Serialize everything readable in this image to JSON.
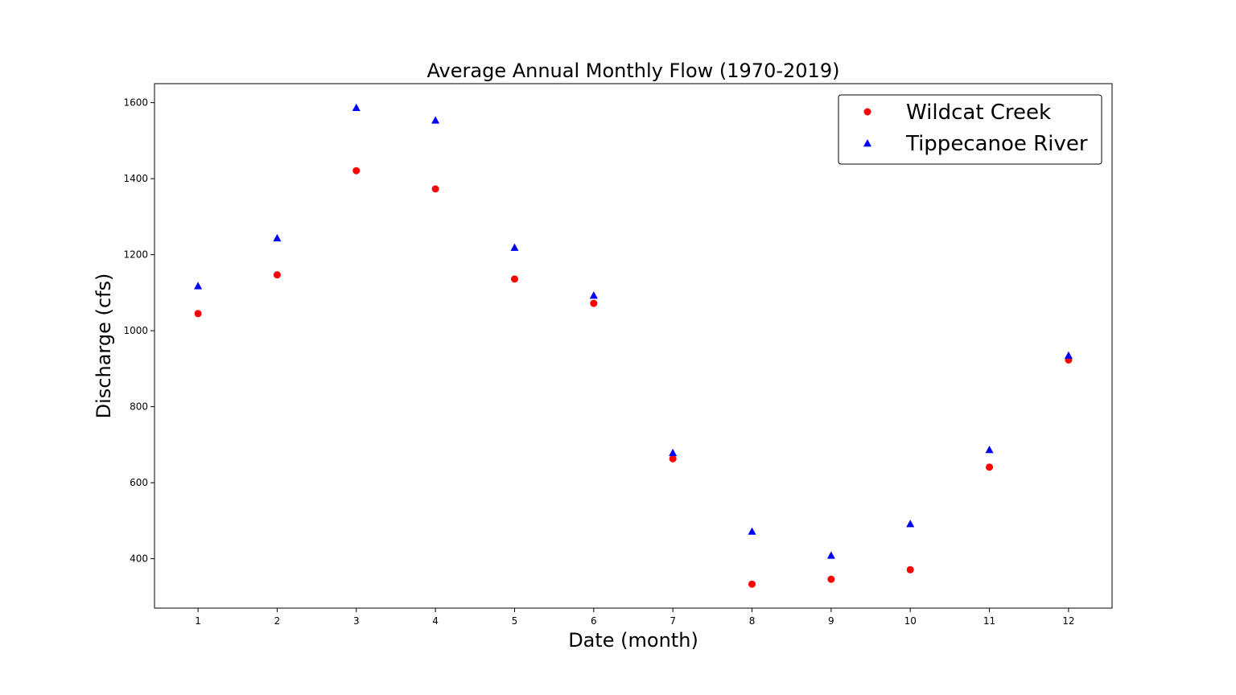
{
  "chart_data": {
    "type": "scatter",
    "title": "Average Annual Monthly Flow (1970-2019)",
    "xlabel": "Date (month)",
    "ylabel": "Discharge (cfs)",
    "x": [
      1,
      2,
      3,
      4,
      5,
      6,
      7,
      8,
      9,
      10,
      11,
      12
    ],
    "xticks": [
      1,
      2,
      3,
      4,
      5,
      6,
      7,
      8,
      9,
      10,
      11,
      12
    ],
    "yticks": [
      400,
      600,
      800,
      1000,
      1200,
      1400,
      1600
    ],
    "xlim": [
      0.45,
      12.55
    ],
    "ylim": [
      270,
      1650
    ],
    "grid": false,
    "legend_position": "top-right",
    "series": [
      {
        "name": "Wildcat Creek",
        "marker": "circle",
        "color": "#ff0000",
        "values": [
          1045,
          1147,
          1421,
          1373,
          1136,
          1072,
          663,
          333,
          346,
          371,
          641,
          923
        ]
      },
      {
        "name": "Tippecanoe River",
        "marker": "triangle",
        "color": "#0000ff",
        "values": [
          1118,
          1244,
          1587,
          1554,
          1219,
          1093,
          679,
          472,
          409,
          492,
          687,
          935
        ]
      }
    ]
  }
}
